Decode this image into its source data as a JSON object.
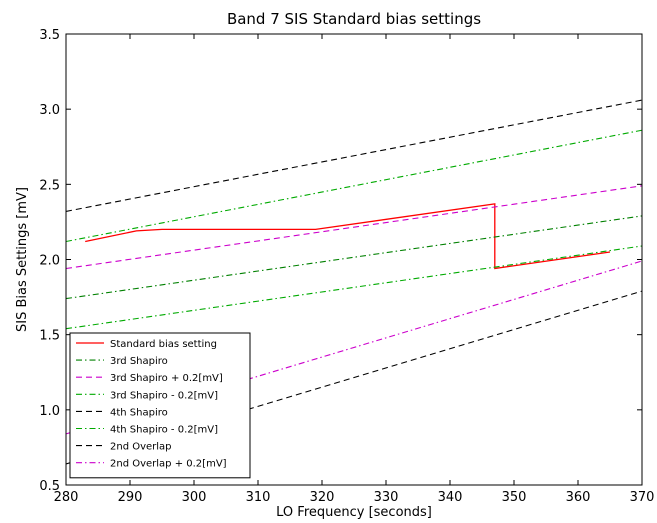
{
  "chart_data": {
    "type": "line",
    "title": "Band 7 SIS Standard bias settings",
    "xlabel": "LO Frequency [seconds]",
    "ylabel": "SIS Bias Settings [mV]",
    "xlim": [
      280,
      370
    ],
    "ylim": [
      0.5,
      3.5
    ],
    "xticks": [
      "280",
      "290",
      "300",
      "310",
      "320",
      "330",
      "340",
      "350",
      "360",
      "370"
    ],
    "yticks": [
      "0.5",
      "1.0",
      "1.5",
      "2.0",
      "2.5",
      "3.0",
      "3.5"
    ],
    "grid": false,
    "legend_position": "lower-left",
    "series": [
      {
        "name": "Standard bias setting",
        "color": "#ff0000",
        "style": "solid",
        "x": [
          283,
          291,
          295,
          319,
          347,
          347,
          365
        ],
        "y": [
          2.12,
          2.19,
          2.2,
          2.2,
          2.37,
          1.94,
          2.05
        ]
      },
      {
        "name": "3rd Shapiro",
        "color": "#008000",
        "style": "dashdot",
        "x": [
          280,
          370
        ],
        "y": [
          1.74,
          2.29
        ]
      },
      {
        "name": "3rd Shapiro + 0.2[mV]",
        "color": "#cc00cc",
        "style": "dashed",
        "x": [
          280,
          370
        ],
        "y": [
          1.94,
          2.49
        ]
      },
      {
        "name": "3rd Shapiro - 0.2[mV]",
        "color": "#00aa00",
        "style": "dashdot",
        "x": [
          280,
          370
        ],
        "y": [
          1.54,
          2.09
        ]
      },
      {
        "name": "4th Shapiro",
        "color": "#000000",
        "style": "dashed",
        "x": [
          280,
          370
        ],
        "y": [
          2.32,
          3.06
        ]
      },
      {
        "name": "4th Shapiro - 0.2[mV]",
        "color": "#00aa00",
        "style": "dashdot",
        "x": [
          280,
          370
        ],
        "y": [
          2.12,
          2.86
        ]
      },
      {
        "name": "2nd Overlap",
        "color": "#000000",
        "style": "dashed",
        "x": [
          280,
          370
        ],
        "y": [
          0.64,
          1.79
        ]
      },
      {
        "name": "2nd Overlap + 0.2[mV]",
        "color": "#cc00cc",
        "style": "dashdot",
        "x": [
          280,
          370
        ],
        "y": [
          0.84,
          1.99
        ]
      }
    ]
  }
}
